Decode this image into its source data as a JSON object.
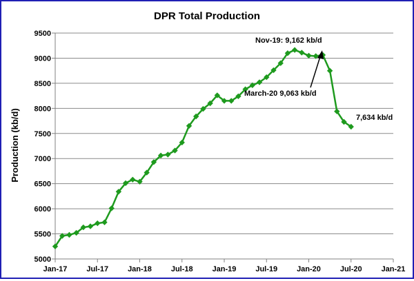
{
  "chart_data": {
    "type": "line",
    "title": "DPR Total  Production",
    "xlabel": "",
    "ylabel": "Production (kb/d)",
    "ylim": [
      5000,
      9500
    ],
    "yticks": [
      5000,
      5500,
      6000,
      6500,
      7000,
      7500,
      8000,
      8500,
      9000,
      9500
    ],
    "xlim": [
      "2017-01",
      "2021-01"
    ],
    "xticks": [
      "Jan-17",
      "Jul-17",
      "Jan-18",
      "Jul-18",
      "Jan-19",
      "Jul-19",
      "Jan-20",
      "Jul-20",
      "Jan-21"
    ],
    "grid": true,
    "legend": "none",
    "series_color": "#1e9a1e",
    "marker": "diamond",
    "series": [
      {
        "x": [
          "2017-01",
          "2017-02",
          "2017-03",
          "2017-04",
          "2017-05",
          "2017-06",
          "2017-07",
          "2017-08",
          "2017-09",
          "2017-10",
          "2017-11",
          "2017-12",
          "2018-01",
          "2018-02",
          "2018-03",
          "2018-04",
          "2018-05",
          "2018-06",
          "2018-07",
          "2018-08",
          "2018-09",
          "2018-10",
          "2018-11",
          "2018-12",
          "2019-01",
          "2019-02",
          "2019-03",
          "2019-04",
          "2019-05",
          "2019-06",
          "2019-07",
          "2019-08",
          "2019-09",
          "2019-10",
          "2019-11",
          "2019-12",
          "2020-01",
          "2020-02",
          "2020-03",
          "2020-04",
          "2020-05",
          "2020-06",
          "2020-07"
        ],
        "values": [
          5250,
          5460,
          5480,
          5520,
          5630,
          5650,
          5710,
          5730,
          6010,
          6340,
          6510,
          6580,
          6540,
          6720,
          6930,
          7060,
          7080,
          7160,
          7320,
          7650,
          7840,
          7990,
          8100,
          8260,
          8150,
          8150,
          8240,
          8380,
          8460,
          8520,
          8620,
          8760,
          8900,
          9100,
          9162,
          9110,
          9050,
          9040,
          9063,
          8750,
          7940,
          7730,
          7634
        ]
      }
    ],
    "annotations": [
      {
        "text": "Nov-19: 9,162 kb/d"
      },
      {
        "text": "March-20 9,063 kb/d"
      },
      {
        "text": "7,634 kb/d"
      }
    ]
  }
}
